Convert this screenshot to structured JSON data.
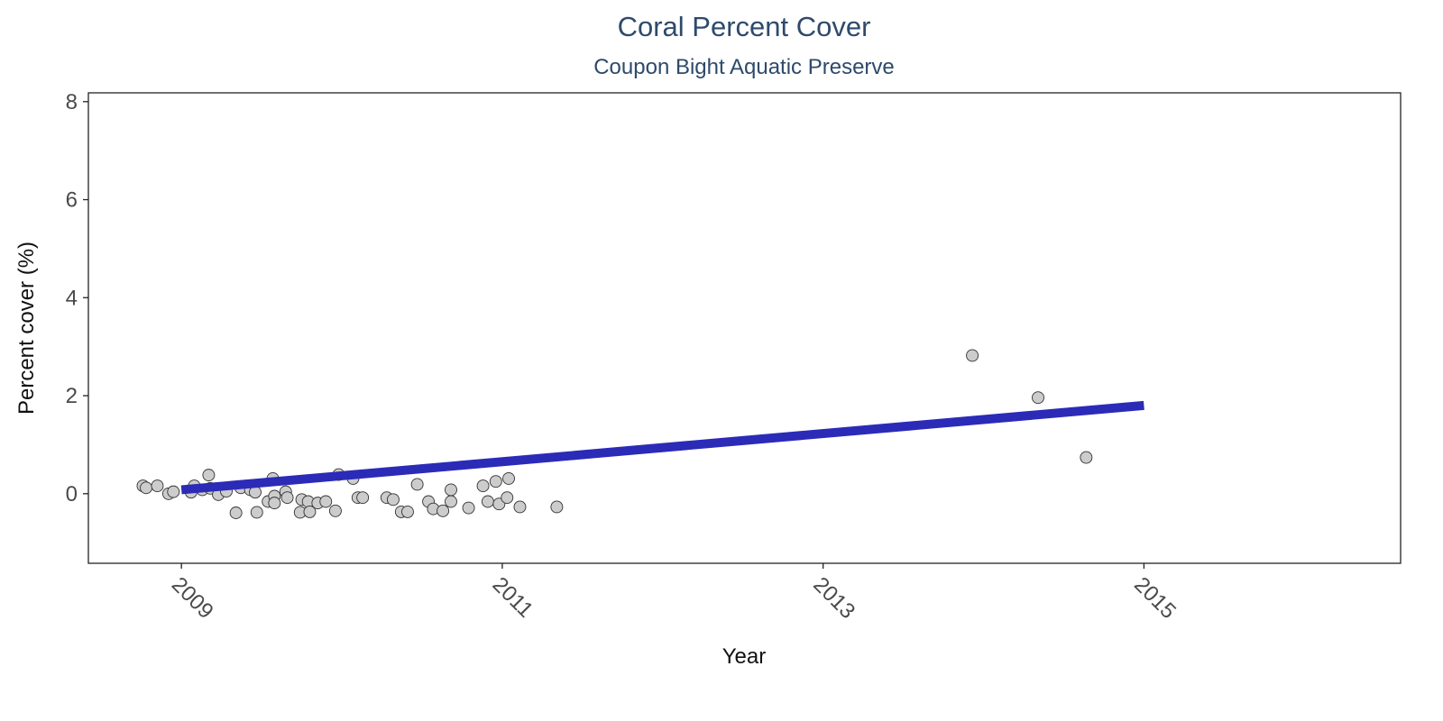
{
  "chart_data": {
    "type": "scatter",
    "title": "Coral Percent Cover",
    "subtitle": "Coupon Bight Aquatic Preserve",
    "xlabel": "Year",
    "ylabel": "Percent cover (%)",
    "x_ticks": [
      "2009",
      "2011",
      "2013",
      "2015"
    ],
    "y_ticks": [
      "0",
      "2",
      "4",
      "6",
      "8"
    ],
    "xlim": [
      2008.42,
      2016.6
    ],
    "ylim": [
      -1.42,
      8.18
    ],
    "grid": false,
    "legend": "none",
    "colors": {
      "point_fill": "#cccccc",
      "point_stroke": "#333333",
      "trend_line": "#2b2bb8",
      "title": "#2e4a6b"
    },
    "points": [
      {
        "x": 2008.76,
        "y": 0.16
      },
      {
        "x": 2008.78,
        "y": 0.12
      },
      {
        "x": 2008.85,
        "y": 0.16
      },
      {
        "x": 2008.92,
        "y": 0.0
      },
      {
        "x": 2008.95,
        "y": 0.04
      },
      {
        "x": 2009.06,
        "y": 0.03
      },
      {
        "x": 2009.08,
        "y": 0.16
      },
      {
        "x": 2009.13,
        "y": 0.08
      },
      {
        "x": 2009.17,
        "y": 0.38
      },
      {
        "x": 2009.18,
        "y": 0.11
      },
      {
        "x": 2009.23,
        "y": -0.02
      },
      {
        "x": 2009.28,
        "y": 0.05
      },
      {
        "x": 2009.34,
        "y": -0.39
      },
      {
        "x": 2009.37,
        "y": 0.12
      },
      {
        "x": 2009.43,
        "y": 0.08
      },
      {
        "x": 2009.46,
        "y": 0.03
      },
      {
        "x": 2009.47,
        "y": -0.38
      },
      {
        "x": 2009.54,
        "y": -0.16
      },
      {
        "x": 2009.57,
        "y": 0.31
      },
      {
        "x": 2009.58,
        "y": -0.05
      },
      {
        "x": 2009.58,
        "y": -0.19
      },
      {
        "x": 2009.65,
        "y": 0.04
      },
      {
        "x": 2009.66,
        "y": -0.08
      },
      {
        "x": 2009.74,
        "y": -0.38
      },
      {
        "x": 2009.75,
        "y": -0.12
      },
      {
        "x": 2009.79,
        "y": -0.16
      },
      {
        "x": 2009.8,
        "y": -0.37
      },
      {
        "x": 2009.85,
        "y": -0.19
      },
      {
        "x": 2009.9,
        "y": -0.16
      },
      {
        "x": 2009.96,
        "y": -0.35
      },
      {
        "x": 2009.98,
        "y": 0.39
      },
      {
        "x": 2010.07,
        "y": 0.31
      },
      {
        "x": 2010.1,
        "y": -0.08
      },
      {
        "x": 2010.13,
        "y": -0.08
      },
      {
        "x": 2010.28,
        "y": -0.08
      },
      {
        "x": 2010.32,
        "y": -0.12
      },
      {
        "x": 2010.37,
        "y": -0.37
      },
      {
        "x": 2010.41,
        "y": -0.37
      },
      {
        "x": 2010.47,
        "y": 0.19
      },
      {
        "x": 2010.54,
        "y": -0.16
      },
      {
        "x": 2010.57,
        "y": -0.31
      },
      {
        "x": 2010.63,
        "y": -0.35
      },
      {
        "x": 2010.68,
        "y": 0.08
      },
      {
        "x": 2010.68,
        "y": -0.16
      },
      {
        "x": 2010.79,
        "y": -0.29
      },
      {
        "x": 2010.88,
        "y": 0.16
      },
      {
        "x": 2010.91,
        "y": -0.16
      },
      {
        "x": 2010.96,
        "y": 0.25
      },
      {
        "x": 2010.98,
        "y": -0.21
      },
      {
        "x": 2011.03,
        "y": -0.08
      },
      {
        "x": 2011.04,
        "y": 0.31
      },
      {
        "x": 2011.11,
        "y": -0.27
      },
      {
        "x": 2011.34,
        "y": -0.27
      },
      {
        "x": 2013.93,
        "y": 2.82
      },
      {
        "x": 2014.34,
        "y": 1.96
      },
      {
        "x": 2014.64,
        "y": 0.74
      }
    ],
    "trend": {
      "x": [
        2009.0,
        2015.0
      ],
      "y": [
        0.08,
        1.8
      ]
    }
  }
}
